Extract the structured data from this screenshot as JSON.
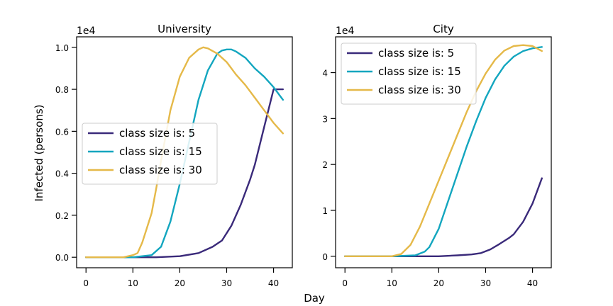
{
  "figure": {
    "xlabel": "Day",
    "ylabel": "Infected (persons)"
  },
  "chart_data": [
    {
      "type": "line",
      "title": "University",
      "xlabel": "Day",
      "ylabel": "Infected (persons)",
      "y_offset_label": "1e4",
      "xlim": [
        -2,
        44
      ],
      "ylim": [
        -0.05,
        1.05
      ],
      "x_ticks": [
        0,
        10,
        20,
        30,
        40
      ],
      "y_ticks": [
        0.0,
        0.2,
        0.4,
        0.6,
        0.8,
        1.0
      ],
      "y_tick_labels": [
        "0.0",
        "0.2",
        "0.4",
        "0.6",
        "0.8",
        "1.0"
      ],
      "legend_position": "center-left",
      "grid": false,
      "series": [
        {
          "name": "class size is: 5",
          "color": "#3a2a7a",
          "x": [
            0,
            10,
            15,
            20,
            24,
            27,
            29,
            31,
            33,
            35,
            36,
            38,
            40,
            42
          ],
          "y": [
            0.0,
            0.0,
            0.0,
            0.005,
            0.02,
            0.05,
            0.08,
            0.15,
            0.25,
            0.37,
            0.44,
            0.62,
            0.8,
            0.8
          ]
        },
        {
          "name": "class size is: 15",
          "color": "#13a6bf",
          "x": [
            0,
            10,
            14,
            16,
            18,
            20,
            22,
            24,
            26,
            28,
            29,
            30,
            31,
            32,
            34,
            36,
            38,
            40,
            42
          ],
          "y": [
            0.0,
            0.0,
            0.01,
            0.05,
            0.17,
            0.35,
            0.55,
            0.75,
            0.89,
            0.97,
            0.985,
            0.99,
            0.99,
            0.98,
            0.95,
            0.9,
            0.86,
            0.81,
            0.75
          ]
        },
        {
          "name": "class size is: 30",
          "color": "#e5b949",
          "x": [
            0,
            8,
            10,
            11,
            12,
            13,
            14,
            15,
            16,
            18,
            20,
            22,
            24,
            25,
            26,
            28,
            30,
            32,
            34,
            36,
            38,
            40,
            42
          ],
          "y": [
            0.0,
            0.0,
            0.01,
            0.02,
            0.07,
            0.14,
            0.21,
            0.33,
            0.46,
            0.7,
            0.86,
            0.95,
            0.99,
            1.0,
            0.995,
            0.97,
            0.93,
            0.87,
            0.82,
            0.76,
            0.7,
            0.64,
            0.59
          ]
        }
      ]
    },
    {
      "type": "line",
      "title": "City",
      "y_offset_label": "1e4",
      "xlim": [
        -2,
        44
      ],
      "ylim": [
        -0.25,
        4.78
      ],
      "x_ticks": [
        0,
        10,
        20,
        30,
        40
      ],
      "y_ticks": [
        0,
        1,
        2,
        3,
        4
      ],
      "y_tick_labels": [
        "0",
        "1",
        "2",
        "3",
        "4"
      ],
      "legend_position": "upper-left",
      "grid": false,
      "series": [
        {
          "name": "class size is: 5",
          "color": "#3a2a7a",
          "x": [
            0,
            10,
            15,
            20,
            24,
            27,
            29,
            31,
            33,
            35,
            36,
            38,
            40,
            42
          ],
          "y": [
            0.0,
            0.0,
            0.0,
            0.0,
            0.02,
            0.04,
            0.07,
            0.15,
            0.27,
            0.4,
            0.48,
            0.75,
            1.15,
            1.7
          ]
        },
        {
          "name": "class size is: 15",
          "color": "#13a6bf",
          "x": [
            0,
            10,
            15,
            17,
            18,
            20,
            22,
            24,
            26,
            28,
            30,
            32,
            34,
            36,
            38,
            40,
            42
          ],
          "y": [
            0.0,
            0.0,
            0.02,
            0.1,
            0.2,
            0.6,
            1.2,
            1.8,
            2.4,
            2.95,
            3.45,
            3.85,
            4.15,
            4.35,
            4.47,
            4.53,
            4.56
          ]
        },
        {
          "name": "class size is: 30",
          "color": "#e5b949",
          "x": [
            0,
            10,
            12,
            14,
            16,
            18,
            20,
            22,
            24,
            26,
            28,
            30,
            32,
            34,
            36,
            38,
            40,
            42
          ],
          "y": [
            0.0,
            0.0,
            0.05,
            0.25,
            0.65,
            1.15,
            1.65,
            2.15,
            2.65,
            3.15,
            3.6,
            3.98,
            4.28,
            4.48,
            4.58,
            4.6,
            4.58,
            4.47
          ]
        }
      ]
    }
  ]
}
